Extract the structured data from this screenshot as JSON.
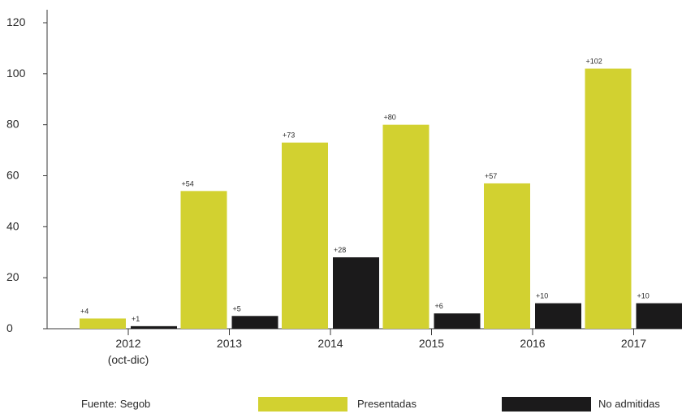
{
  "chart_data": {
    "type": "bar",
    "categories": [
      "2012\n(oct-dic)",
      "2013",
      "2014",
      "2015",
      "2016",
      "2017"
    ],
    "series": [
      {
        "name": "Presentadas",
        "color": "#d2d130",
        "values": [
          4,
          54,
          73,
          80,
          57,
          102
        ],
        "labels": [
          "+4",
          "+54",
          "+73",
          "+80",
          "+57",
          "+102"
        ]
      },
      {
        "name": "No admitidas",
        "color": "#1b1a1b",
        "values": [
          1,
          5,
          28,
          6,
          10,
          10
        ],
        "labels": [
          "+1",
          "+5",
          "+28",
          "+6",
          "+10",
          "+10"
        ]
      }
    ],
    "yticks": [
      0,
      20,
      40,
      60,
      80,
      100,
      120
    ],
    "ylim": [
      0,
      120
    ],
    "grid": false,
    "legend_position": "bottom",
    "source": "Fuente: Segob"
  }
}
